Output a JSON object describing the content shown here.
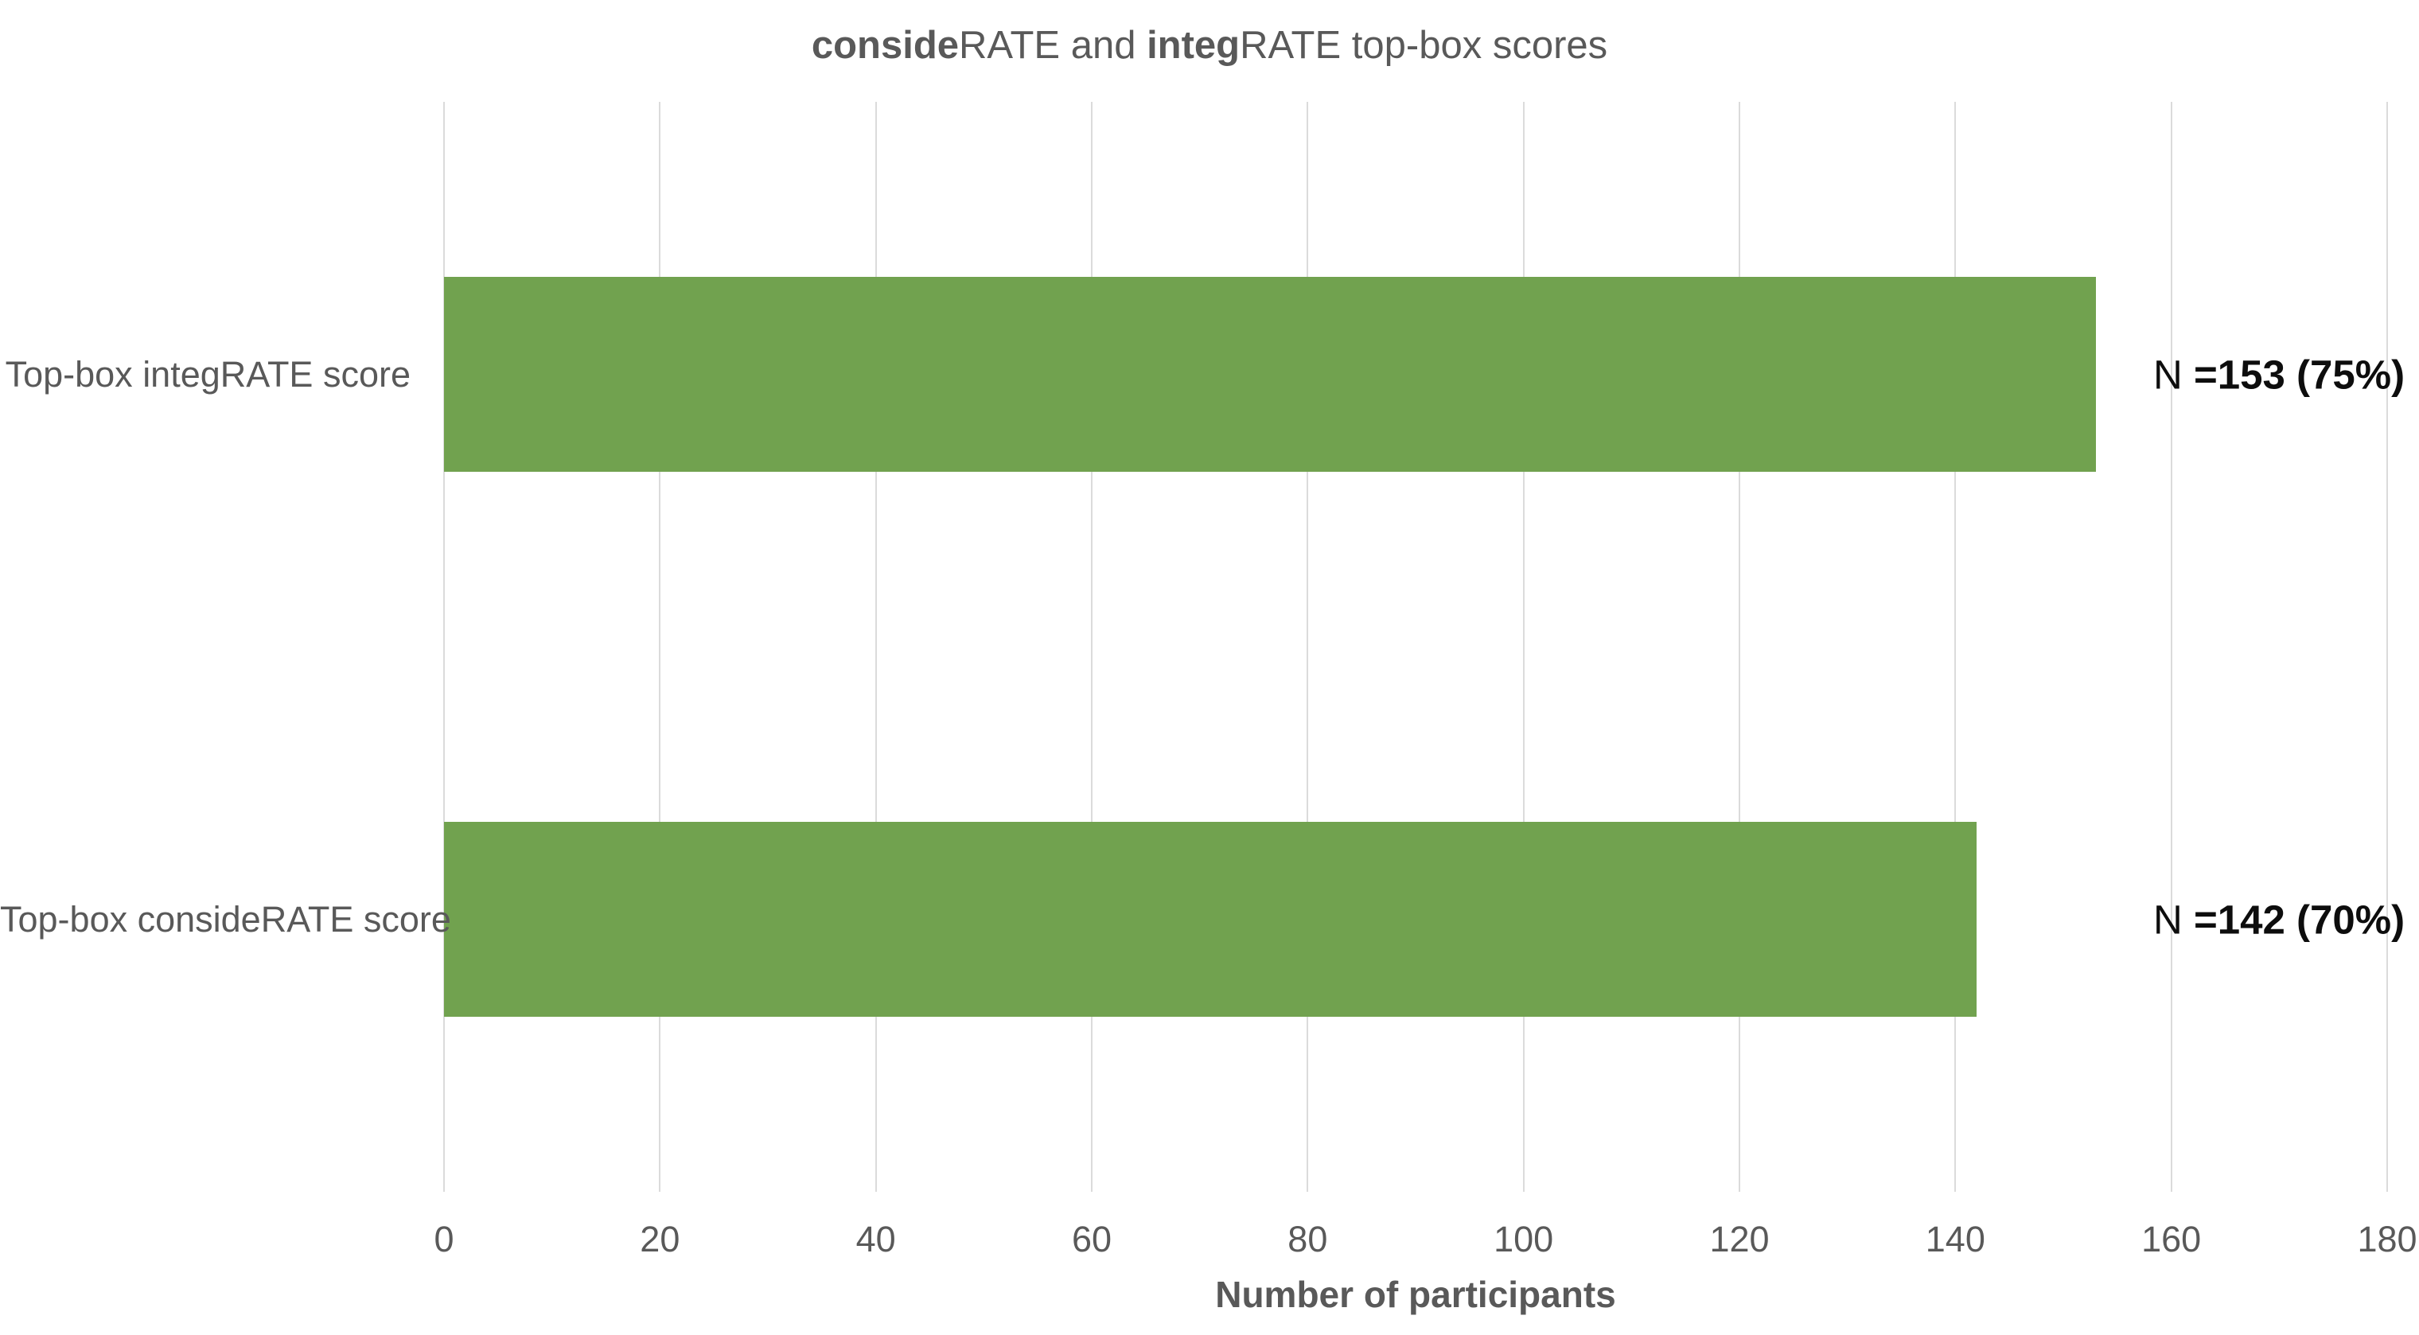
{
  "title": {
    "parts": [
      {
        "text": "conside",
        "bold": true
      },
      {
        "text": "RATE and ",
        "bold": false
      },
      {
        "text": "integ",
        "bold": true
      },
      {
        "text": "RATE top-box scores",
        "bold": false
      }
    ],
    "full_text": "consideRATE and integRATE top-box scores"
  },
  "chart_data": {
    "type": "bar",
    "orientation": "horizontal",
    "categories": [
      "Top-box integRATE score",
      "Top-box consideRATE score"
    ],
    "values": [
      153,
      142
    ],
    "data_labels": [
      {
        "prefix": "N ",
        "value_text": "=153 (75%)"
      },
      {
        "prefix": "N ",
        "value_text": "=142 (70%)"
      }
    ],
    "title": "consideRATE and integRATE top-box scores",
    "xlabel": "Number of participants",
    "ylabel": "",
    "xlim": [
      0,
      180
    ],
    "xticks": [
      0,
      20,
      40,
      60,
      80,
      100,
      120,
      140,
      160,
      180
    ],
    "grid": "vertical-gridlines-on",
    "legend": "none",
    "colors": {
      "bar": "#71A24F",
      "gridline": "#DBDBDB",
      "axis_text": "#595959",
      "data_label_text": "#0D0D0D",
      "background": "#FFFFFF"
    }
  }
}
